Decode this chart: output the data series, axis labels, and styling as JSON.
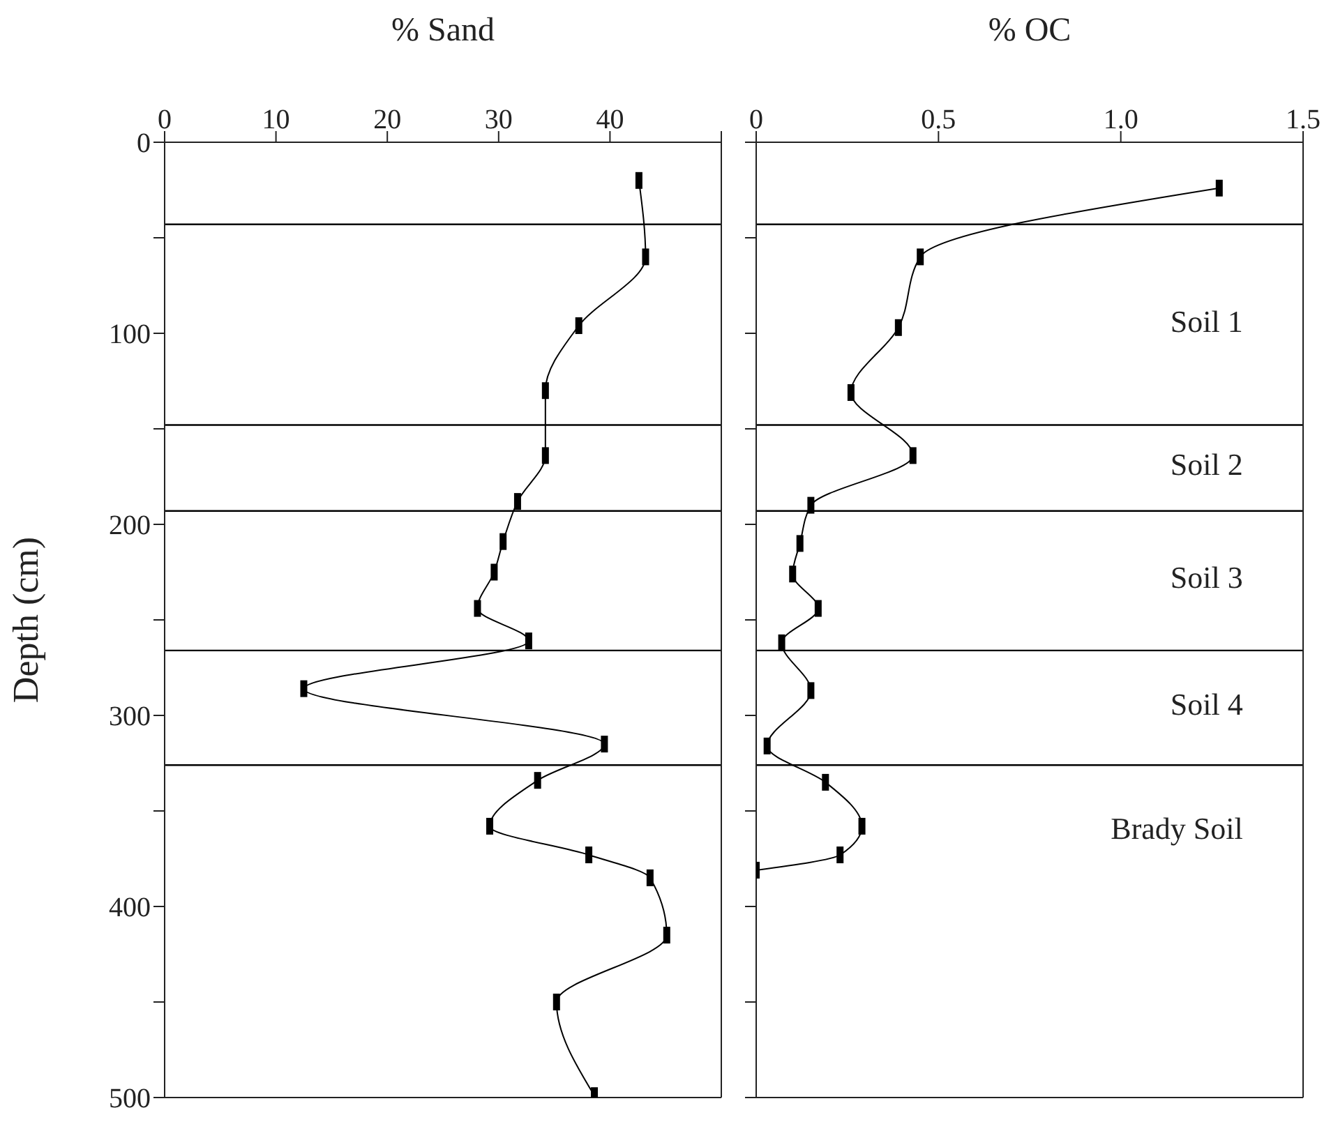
{
  "chart_data": [
    {
      "type": "line",
      "orientation": "horizontal",
      "xlabel": "% Sand",
      "ylabel": "Depth (cm)",
      "xlim": [
        0,
        50
      ],
      "xticks": [
        0,
        10,
        20,
        30,
        40,
        {
          "value": 50,
          "label": null
        }
      ],
      "ylim": [
        500,
        0
      ],
      "yticks": [
        0,
        {
          "value": 50,
          "label": null
        },
        100,
        {
          "value": 150,
          "label": null
        },
        200,
        {
          "value": 250,
          "label": null
        },
        300,
        {
          "value": 350,
          "label": null
        },
        400,
        {
          "value": 450,
          "label": null
        },
        500
      ],
      "marker": "square",
      "series": [
        {
          "color": "#000000",
          "x": [
            20,
            60,
            96,
            130,
            164,
            188,
            209,
            225,
            244,
            261,
            286,
            315,
            334,
            358,
            373,
            385,
            415,
            450,
            499
          ],
          "values": [
            42.6,
            43.2,
            37.2,
            34.2,
            34.2,
            31.7,
            30.4,
            29.6,
            28.1,
            32.7,
            12.5,
            39.5,
            33.5,
            29.2,
            38.1,
            43.6,
            45.1,
            35.2,
            38.6
          ]
        }
      ],
      "ref_lines": [
        {
          "axis": "y",
          "value": 43,
          "color": "#000000"
        },
        {
          "axis": "y",
          "value": 148,
          "color": "#000000"
        },
        {
          "axis": "y",
          "value": 193,
          "color": "#000000"
        },
        {
          "axis": "y",
          "value": 266,
          "color": "#000000"
        },
        {
          "axis": "y",
          "value": 326,
          "color": "#000000"
        }
      ]
    },
    {
      "type": "line",
      "orientation": "horizontal",
      "xlabel": "% OC",
      "xlim": [
        0,
        1.5
      ],
      "xticks": [
        0,
        0.5,
        {
          "value": 1,
          "label": "1.0"
        },
        1.5
      ],
      "ylim": [
        500,
        0
      ],
      "yticks": [
        {
          "value": 0,
          "label": null
        },
        {
          "value": 50,
          "label": null
        },
        {
          "value": 100,
          "label": null
        },
        {
          "value": 150,
          "label": null
        },
        {
          "value": 200,
          "label": null
        },
        {
          "value": 250,
          "label": null
        },
        {
          "value": 300,
          "label": null
        },
        {
          "value": 350,
          "label": null
        },
        {
          "value": 400,
          "label": null
        },
        {
          "value": 450,
          "label": null
        },
        {
          "value": 500,
          "label": null
        }
      ],
      "tick_labels": "x",
      "marker": "square",
      "series": [
        {
          "color": "#000000",
          "x": [
            24,
            60,
            97,
            131,
            164,
            190,
            210,
            226,
            244,
            262,
            287,
            316,
            335,
            358,
            373,
            381
          ],
          "values": [
            1.27,
            0.45,
            0.39,
            0.26,
            0.43,
            0.15,
            0.12,
            0.1,
            0.17,
            0.07,
            0.15,
            0.03,
            0.19,
            0.29,
            0.23,
            0
          ]
        }
      ],
      "ref_lines": [
        {
          "axis": "y",
          "value": 43,
          "color": "#000000"
        },
        {
          "axis": "y",
          "value": 148,
          "color": "#000000"
        },
        {
          "axis": "y",
          "value": 193,
          "color": "#000000"
        },
        {
          "axis": "y",
          "value": 266,
          "color": "#000000"
        },
        {
          "axis": "y",
          "value": 326,
          "color": "#000000"
        }
      ],
      "annotations": [
        "Soil 1",
        "Soil 2",
        "Soil 3",
        "Soil 4",
        "Brady Soil"
      ]
    }
  ]
}
